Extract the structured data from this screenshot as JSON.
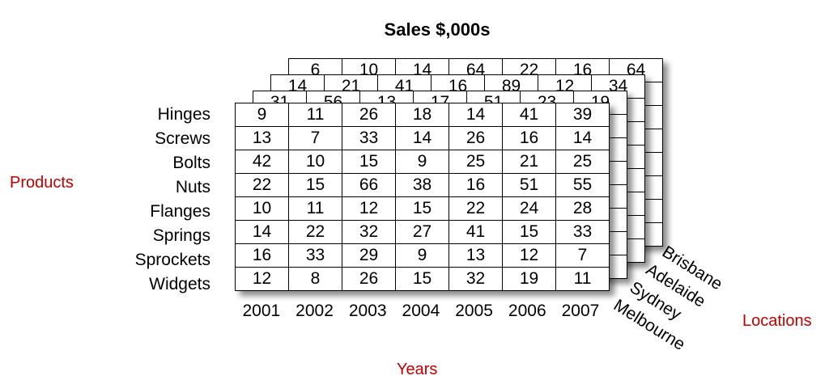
{
  "title": "Sales $,000s",
  "axes": {
    "products": "Products",
    "locations": "Locations",
    "years": "Years"
  },
  "products": [
    "Hinges",
    "Screws",
    "Bolts",
    "Nuts",
    "Flanges",
    "Springs",
    "Sprockets",
    "Widgets"
  ],
  "years": [
    "2001",
    "2002",
    "2003",
    "2004",
    "2005",
    "2006",
    "2007"
  ],
  "locations": [
    "Brisbane",
    "Adelaide",
    "Sydney",
    "Melbourne"
  ],
  "layers": [
    {
      "location": "Brisbane",
      "first_row": [
        "6",
        "10",
        "14",
        "64",
        "22",
        "16",
        "64"
      ]
    },
    {
      "location": "Adelaide",
      "first_row": [
        "14",
        "21",
        "41",
        "16",
        "89",
        "12",
        "34"
      ]
    },
    {
      "location": "Sydney",
      "first_row": [
        "31",
        "56",
        "13",
        "17",
        "51",
        "23",
        "19"
      ]
    }
  ],
  "front_grid": {
    "location": "Melbourne",
    "rows": [
      [
        "9",
        "11",
        "26",
        "18",
        "14",
        "41",
        "39"
      ],
      [
        "13",
        "7",
        "33",
        "14",
        "26",
        "16",
        "14"
      ],
      [
        "42",
        "10",
        "15",
        "9",
        "25",
        "21",
        "25"
      ],
      [
        "22",
        "15",
        "66",
        "38",
        "16",
        "51",
        "55"
      ],
      [
        "10",
        "11",
        "12",
        "15",
        "22",
        "24",
        "28"
      ],
      [
        "14",
        "22",
        "32",
        "27",
        "41",
        "15",
        "33"
      ],
      [
        "16",
        "33",
        "29",
        "9",
        "13",
        "12",
        "7"
      ],
      [
        "12",
        "8",
        "26",
        "15",
        "32",
        "19",
        "11"
      ]
    ]
  }
}
